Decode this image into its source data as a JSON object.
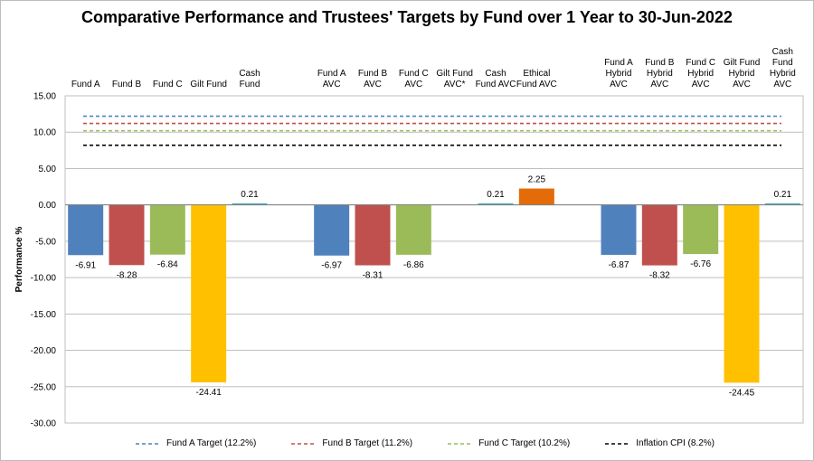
{
  "chart_data": {
    "type": "bar",
    "title": "Comparative Performance and Trustees' Targets by Fund over 1 Year to 30-Jun-2022",
    "ylabel": "Performance %",
    "ylim": [
      -30,
      15
    ],
    "yticks": [
      "15.00",
      "10.00",
      "5.00",
      "0.00",
      "-5.00",
      "-10.00",
      "-15.00",
      "-20.00",
      "-25.00",
      "-30.00"
    ],
    "grid": true,
    "legend_position": "bottom",
    "categories": [
      {
        "label": [
          "Fund A"
        ],
        "value": -6.91,
        "label_text": "-6.91",
        "color": "#4f81bd"
      },
      {
        "label": [
          "Fund B"
        ],
        "value": -8.28,
        "label_text": "-8.28",
        "color": "#c0504d"
      },
      {
        "label": [
          "Fund C"
        ],
        "value": -6.84,
        "label_text": "-6.84",
        "color": "#9bbb59"
      },
      {
        "label": [
          "Gilt Fund"
        ],
        "value": -24.41,
        "label_text": "-24.41",
        "color": "#ffc000"
      },
      {
        "label": [
          "Cash",
          "Fund"
        ],
        "value": 0.21,
        "label_text": "0.21",
        "color": "#4bacc6"
      },
      {
        "label": [],
        "value": null,
        "label_text": "",
        "color": ""
      },
      {
        "label": [
          "Fund A",
          "AVC"
        ],
        "value": -6.97,
        "label_text": "-6.97",
        "color": "#4f81bd"
      },
      {
        "label": [
          "Fund B",
          "AVC"
        ],
        "value": -8.31,
        "label_text": "-8.31",
        "color": "#c0504d"
      },
      {
        "label": [
          "Fund C",
          "AVC"
        ],
        "value": -6.86,
        "label_text": "-6.86",
        "color": "#9bbb59"
      },
      {
        "label": [
          "Gilt Fund",
          "AVC*"
        ],
        "value": null,
        "label_text": "",
        "color": "#ffc000"
      },
      {
        "label": [
          "Cash",
          "Fund AVC"
        ],
        "value": 0.21,
        "label_text": "0.21",
        "color": "#4bacc6"
      },
      {
        "label": [
          "Ethical",
          "Fund AVC"
        ],
        "value": 2.25,
        "label_text": "2.25",
        "color": "#e36c09"
      },
      {
        "label": [],
        "value": null,
        "label_text": "",
        "color": ""
      },
      {
        "label": [
          "Fund A",
          "Hybrid",
          "AVC"
        ],
        "value": -6.87,
        "label_text": "-6.87",
        "color": "#4f81bd"
      },
      {
        "label": [
          "Fund B",
          "Hybrid",
          "AVC"
        ],
        "value": -8.32,
        "label_text": "-8.32",
        "color": "#c0504d"
      },
      {
        "label": [
          "Fund C",
          "Hybrid",
          "AVC"
        ],
        "value": -6.76,
        "label_text": "-6.76",
        "color": "#9bbb59"
      },
      {
        "label": [
          "Gilt Fund",
          "Hybrid",
          "AVC"
        ],
        "value": -24.45,
        "label_text": "-24.45",
        "color": "#ffc000"
      },
      {
        "label": [
          "Cash",
          "Fund",
          "Hybrid",
          "AVC"
        ],
        "value": 0.21,
        "label_text": "0.21",
        "color": "#4bacc6"
      }
    ],
    "targets": [
      {
        "name": "Fund A Target (12.2%)",
        "value": 12.2,
        "color": "#4f81bd"
      },
      {
        "name": "Fund B Target (11.2%)",
        "value": 11.2,
        "color": "#c0504d"
      },
      {
        "name": "Fund C Target (10.2%)",
        "value": 10.2,
        "color": "#9bbb59"
      },
      {
        "name": "Inflation CPI (8.2%)",
        "value": 8.2,
        "color": "#000000"
      }
    ]
  }
}
